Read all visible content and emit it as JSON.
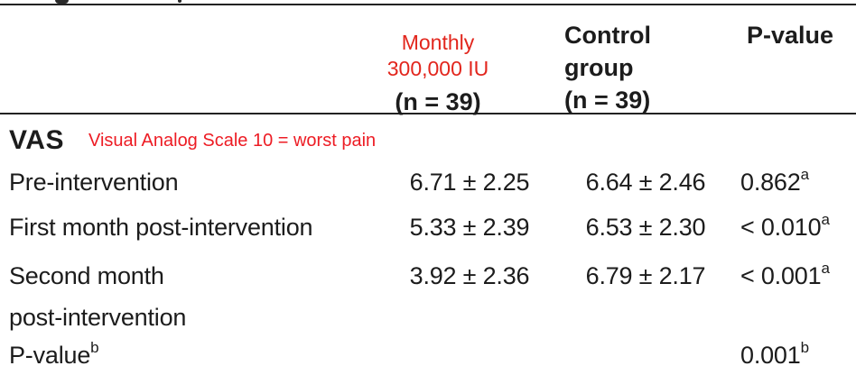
{
  "colors": {
    "accent_red": "#e2261d",
    "note_red": "#ed1c24",
    "text": "#1c1c1c",
    "rule": "#222222"
  },
  "table": {
    "header": {
      "monthly": {
        "line1": "Monthly",
        "line2": "300,000 IU",
        "n": "(n = 39)"
      },
      "control": {
        "line1": "Control",
        "line2": "group",
        "n": "(n = 39)"
      },
      "pvalue": "P-value"
    },
    "section": {
      "title": "VAS",
      "note": "Visual Analog Scale 10 = worst pain"
    },
    "rows": [
      {
        "label": "Pre-intervention",
        "monthly": "6.71 ± 2.25",
        "control": "6.64 ± 2.46",
        "p": "0.862",
        "p_sup": "a"
      },
      {
        "label": "First month post-intervention",
        "monthly": "5.33 ± 2.39",
        "control": "6.53 ± 2.30",
        "p": "< 0.010",
        "p_sup": "a"
      },
      {
        "label": "Second month\npost-intervention",
        "monthly": "3.92 ± 2.36",
        "control": "6.79 ± 2.17",
        "p": "< 0.001",
        "p_sup": "a"
      },
      {
        "label": "P-value",
        "label_sup": "b",
        "monthly": "",
        "control": "",
        "p": "0.001",
        "p_sup": "b"
      }
    ]
  }
}
